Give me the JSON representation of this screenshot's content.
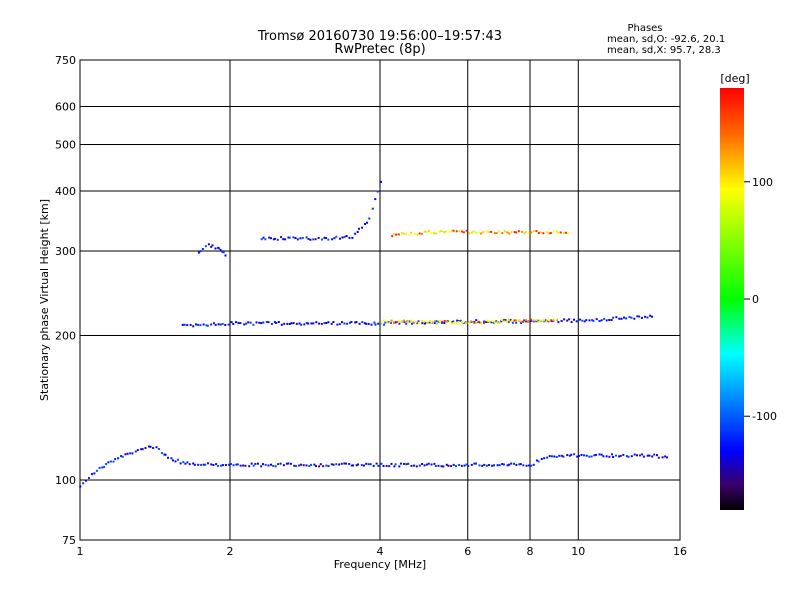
{
  "chart_data": {
    "type": "scatter",
    "title": "Tromsø 20160730 19:56:00–19:57:43",
    "subtitle": "RwPretec (8p)",
    "xlabel": "Frequency [MHz]",
    "ylabel": "Stationary phase Virtual Height [km]",
    "x_scale": "log",
    "y_scale": "log",
    "xlim": [
      1,
      16
    ],
    "ylim": [
      75,
      750
    ],
    "x_ticks": [
      1,
      2,
      4,
      6,
      8,
      10,
      16
    ],
    "y_ticks": [
      75,
      100,
      200,
      300,
      400,
      500,
      600,
      750
    ],
    "grid": true,
    "stats": {
      "heading": "Phases",
      "line_o": "mean, sd,O: -92.6, 20.1",
      "line_x": "mean, sd,X: 95.7, 28.3"
    },
    "colorbar": {
      "label": "[deg]",
      "ticks": [
        100,
        0,
        -100
      ],
      "range": [
        -180,
        180
      ],
      "colormap": "rainbow"
    },
    "series": [
      {
        "mode": "O",
        "traces": [
          {
            "x": [
              1.0,
              1.05,
              1.1,
              1.2,
              1.3,
              1.4,
              1.5,
              1.6,
              2.0,
              3.0,
              4.0,
              5.0,
              6.0,
              7.0,
              8.0,
              8.5,
              9.0,
              10.0,
              12.0,
              14.0,
              15.0
            ],
            "y": [
              98,
              103,
              107,
              112,
              116,
              118,
              112,
              109,
              108,
              108,
              108,
              108,
              108,
              108,
              108,
              112,
              113,
              113,
              113,
              113,
              112
            ]
          },
          {
            "x": [
              1.6,
              1.8,
              2.0,
              2.5,
              3.0,
              3.5,
              4.0,
              5.0,
              6.0,
              8.0,
              10.0,
              12.0,
              14.0
            ],
            "y": [
              210,
              212,
              213,
              213,
              213,
              213,
              213,
              214,
              215,
              215,
              216,
              218,
              220
            ]
          },
          {
            "x": [
              1.72,
              1.8,
              1.9,
              1.95
            ],
            "y": [
              300,
              310,
              305,
              295
            ]
          },
          {
            "x": [
              2.3,
              2.6,
              3.0,
              3.5,
              3.8,
              4.0
            ],
            "y": [
              320,
              320,
              320,
              322,
              350,
              420
            ]
          }
        ]
      },
      {
        "mode": "X",
        "traces": [
          {
            "x": [
              4.2,
              5.0,
              6.0,
              7.0,
              8.0,
              9.0,
              9.5
            ],
            "y": [
              325,
              330,
              330,
              330,
              330,
              330,
              328
            ]
          },
          {
            "x": [
              4.0,
              5.0,
              6.0,
              7.0,
              8.0,
              9.0
            ],
            "y": [
              215,
              214,
              214,
              215,
              216,
              217
            ]
          }
        ]
      }
    ]
  }
}
